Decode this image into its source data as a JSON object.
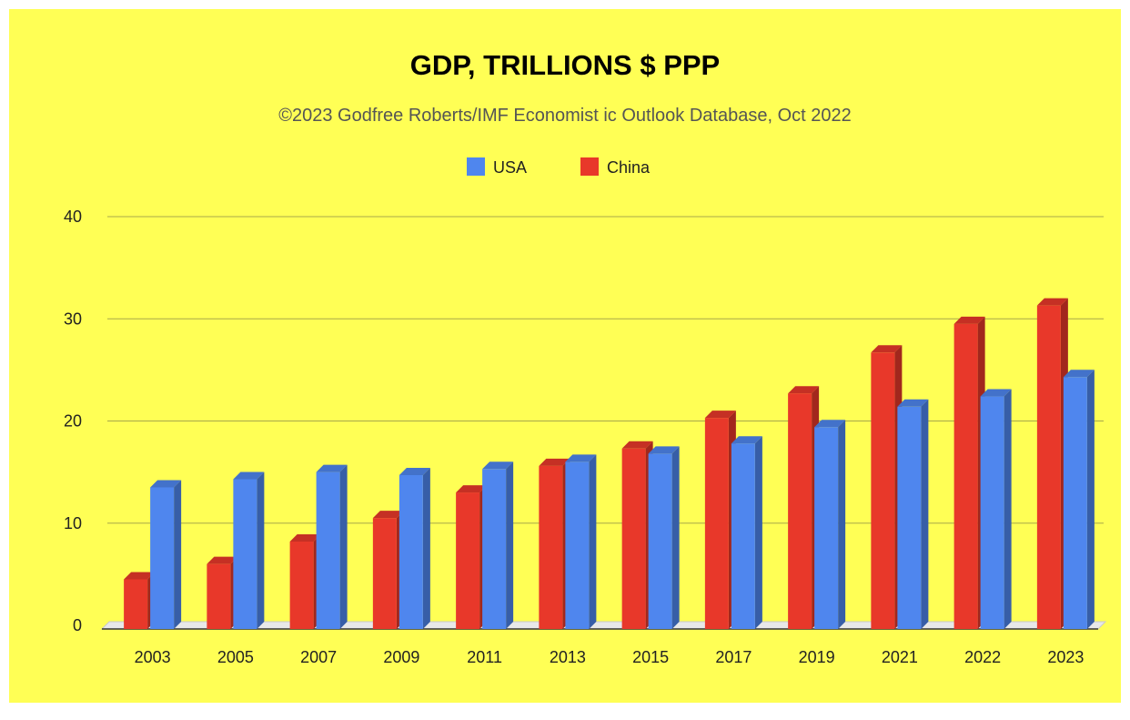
{
  "chart_data": {
    "type": "bar",
    "title": "GDP, TRILLIONS $ PPP",
    "subtitle": "©2023 Godfree Roberts/IMF Economist ic Outlook Database, Oct 2022",
    "xlabel": "",
    "ylabel": "",
    "categories": [
      "2003",
      "2005",
      "2007",
      "2009",
      "2011",
      "2013",
      "2015",
      "2017",
      "2019",
      "2021",
      "2022",
      "2023"
    ],
    "series": [
      {
        "name": "China",
        "color": "#e8382a",
        "values": [
          4.5,
          6.0,
          8.2,
          10.5,
          13.0,
          15.6,
          17.3,
          20.3,
          22.7,
          26.7,
          29.5,
          31.3
        ]
      },
      {
        "name": "USA",
        "color": "#4f86ee",
        "values": [
          13.5,
          14.3,
          15.0,
          14.7,
          15.3,
          16.0,
          16.8,
          17.8,
          19.4,
          21.4,
          22.4,
          24.3
        ]
      }
    ],
    "legend_order": [
      "USA",
      "China"
    ],
    "legend_position": "top-center",
    "yticks": [
      0,
      10,
      20,
      30,
      40
    ],
    "ylim": [
      0,
      40
    ],
    "grid": true,
    "style": "3d-columns",
    "background_color": "#ffff55"
  }
}
